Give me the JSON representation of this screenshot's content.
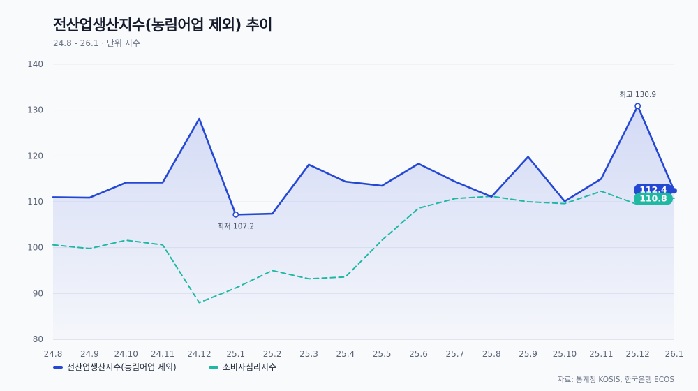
{
  "header": {
    "title": "전산업생산지수(농림어업 제외) 추이",
    "subtitle": "24.8 - 26.1 · 단위 지수"
  },
  "source": "자료: 통계청 KOSIS, 한국은행 ECOS",
  "colors": {
    "primary": "#2448d4",
    "secondary": "#1fb8a2",
    "grid": "#e6e9f0",
    "axis_text": "#5b6376"
  },
  "chart_data": {
    "type": "line",
    "title": "전산업생산지수(농림어업 제외) 추이",
    "categories": [
      "24.8",
      "24.9",
      "24.10",
      "24.11",
      "24.12",
      "25.1",
      "25.2",
      "25.3",
      "25.4",
      "25.5",
      "25.6",
      "25.7",
      "25.8",
      "25.9",
      "25.10",
      "25.11",
      "25.12",
      "26.1"
    ],
    "ylim": [
      80,
      140
    ],
    "yticks": [
      80,
      90,
      100,
      110,
      120,
      130,
      140
    ],
    "grid": true,
    "legend_position": "bottom-left",
    "series": [
      {
        "name": "전산업생산지수(농림어업 제외)",
        "color": "#2448d4",
        "style": "solid",
        "area": true,
        "values": [
          111.0,
          110.9,
          114.2,
          114.2,
          128.1,
          107.2,
          107.4,
          118.1,
          114.4,
          113.5,
          118.3,
          114.4,
          111.1,
          119.8,
          110.1,
          115.0,
          130.9,
          112.4
        ],
        "end_label": "112.4"
      },
      {
        "name": "소비자심리지수",
        "color": "#1fb8a2",
        "style": "dashed",
        "area": false,
        "values": [
          100.6,
          99.8,
          101.6,
          100.6,
          88.0,
          91.2,
          95.0,
          93.2,
          93.6,
          101.6,
          108.6,
          110.7,
          111.2,
          110.0,
          109.6,
          112.3,
          109.4,
          110.8
        ],
        "end_label": "110.8"
      }
    ],
    "annotations": [
      {
        "series": 0,
        "index": 16,
        "text": "최고 130.9",
        "position": "above"
      },
      {
        "series": 0,
        "index": 5,
        "text": "최저 107.2",
        "position": "below"
      }
    ]
  }
}
